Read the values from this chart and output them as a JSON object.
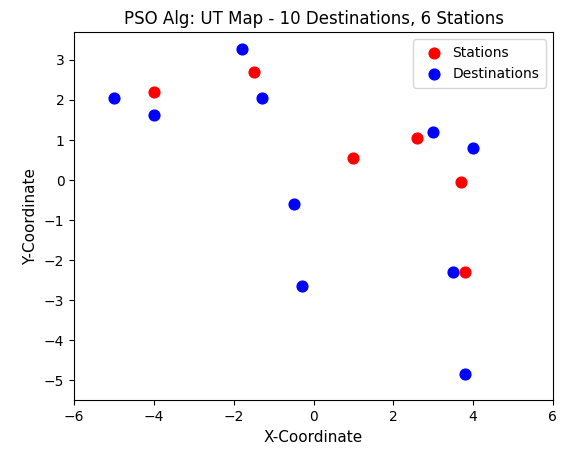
{
  "title": "PSO Alg: UT Map - 10 Destinations, 6 Stations",
  "xlabel": "X-Coordinate",
  "ylabel": "Y-Coordinate",
  "xlim": [
    -6,
    6
  ],
  "ylim": [
    -5.5,
    3.7
  ],
  "xticks": [
    -6,
    -4,
    -2,
    0,
    2,
    4,
    6
  ],
  "yticks": [
    -5,
    -4,
    -3,
    -2,
    -1,
    0,
    1,
    2,
    3
  ],
  "stations": [
    [
      -4.0,
      2.2
    ],
    [
      -1.5,
      2.7
    ],
    [
      1.0,
      0.55
    ],
    [
      2.6,
      1.05
    ],
    [
      3.7,
      -0.05
    ],
    [
      3.8,
      -2.3
    ]
  ],
  "destinations": [
    [
      -5.0,
      2.05
    ],
    [
      -4.0,
      1.63
    ],
    [
      -1.8,
      3.27
    ],
    [
      -1.3,
      2.05
    ],
    [
      -0.5,
      -0.6
    ],
    [
      -0.3,
      -2.65
    ],
    [
      3.0,
      1.2
    ],
    [
      4.0,
      0.8
    ],
    [
      3.5,
      -2.3
    ],
    [
      3.8,
      -4.85
    ]
  ],
  "station_color": "red",
  "destination_color": "blue",
  "marker_size": 60,
  "background_color": "white",
  "title_fontsize": 12,
  "axis_label_fontsize": 11,
  "tick_fontsize": 10,
  "legend_fontsize": 10
}
